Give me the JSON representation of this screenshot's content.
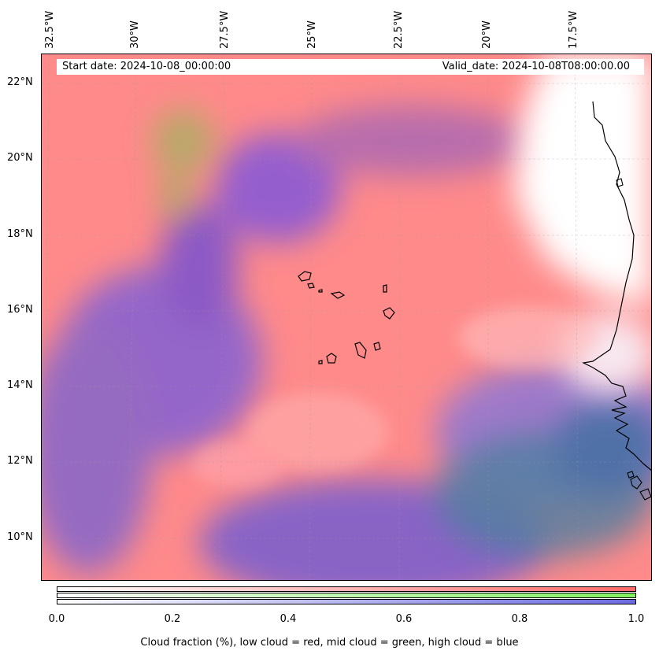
{
  "map": {
    "start_date": "Start date: 2024-10-08_00:00:00",
    "valid_date": "Valid_date: 2024-10-08T08:00:00.00",
    "lon_ticks": [
      "32.5°W",
      "30°W",
      "27.5°W",
      "25°W",
      "22.5°W",
      "20°W",
      "17.5°W"
    ],
    "lat_ticks": [
      "22°N",
      "20°N",
      "18°N",
      "16°N",
      "14°N",
      "12°N",
      "10°N"
    ],
    "colors": {
      "low_cloud": "#ff8080",
      "mid_cloud": "#80e070",
      "high_cloud": "#7070e0"
    }
  },
  "colorbar": {
    "ticks": [
      "0.0",
      "0.2",
      "0.4",
      "0.6",
      "0.8",
      "1.0"
    ],
    "caption": "Cloud fraction (%), low cloud = red, mid cloud = green, high cloud = blue"
  }
}
